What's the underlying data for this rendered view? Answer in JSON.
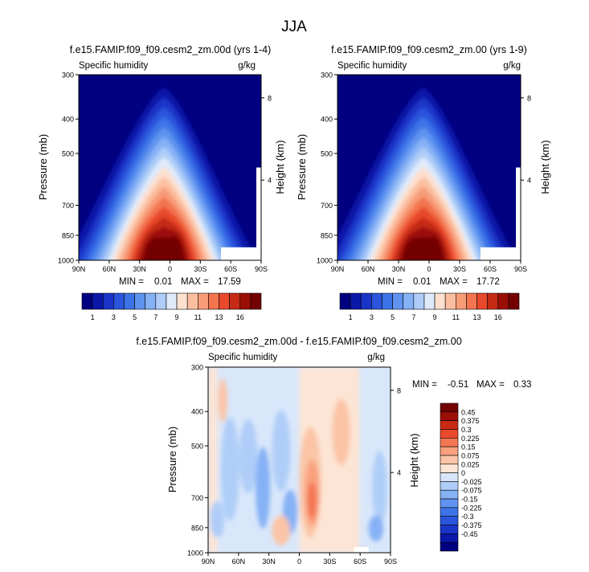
{
  "figure": {
    "title": "JJA"
  },
  "colors": {
    "abs_scale": [
      "#000080",
      "#0a17a8",
      "#1b34c8",
      "#2a55dc",
      "#3c74e8",
      "#5f93ef",
      "#85b1f5",
      "#afcdf8",
      "#dfeafb",
      "#fde0cf",
      "#fbbfa0",
      "#f89c78",
      "#f3754f",
      "#e8482b",
      "#c52a14",
      "#9b0f07",
      "#730303"
    ],
    "diff_scale": [
      "#000080",
      "#0a17a8",
      "#1b34c8",
      "#2a55dc",
      "#3c74e8",
      "#5f93ef",
      "#85b1f5",
      "#afcdf8",
      "#d7e6fb",
      "#fde5d5",
      "#fbc4a6",
      "#f9a07e",
      "#f47652",
      "#e9492c",
      "#c92a14",
      "#9b0f07",
      "#730303"
    ]
  },
  "chart_data": [
    {
      "type": "contour",
      "title": "f.e15.FAMIP.f09_f09.cesm2_zm.00d (yrs 1-4)",
      "left_label": "Specific humidity",
      "units": "g/kg",
      "ylabel": "Pressure (mb)",
      "right_label": "Height (km)",
      "x_ticks": [
        "90N",
        "60N",
        "30N",
        "0",
        "30S",
        "60S",
        "90S"
      ],
      "y_ticks": [
        "300",
        "400",
        "500",
        "700",
        "850",
        "1000"
      ],
      "y_tick_values": [
        300,
        400,
        500,
        700,
        850,
        1000
      ],
      "height_ticks": [
        "8",
        "4"
      ],
      "height_tick_values": [
        8,
        4
      ],
      "min_label": "MIN =",
      "min": "0.01",
      "max_label": "MAX =",
      "max": "17.59",
      "colorbar_labels": [
        "1",
        "3",
        "5",
        "7",
        "9",
        "11",
        "13",
        "16"
      ]
    },
    {
      "type": "contour",
      "title": "f.e15.FAMIP.f09_f09.cesm2_zm.00 (yrs 1-9)",
      "left_label": "Specific humidity",
      "units": "g/kg",
      "ylabel": "Pressure (mb)",
      "right_label": "Height (km)",
      "x_ticks": [
        "90N",
        "60N",
        "30N",
        "0",
        "30S",
        "60S",
        "90S"
      ],
      "y_ticks": [
        "300",
        "400",
        "500",
        "700",
        "850",
        "1000"
      ],
      "y_tick_values": [
        300,
        400,
        500,
        700,
        850,
        1000
      ],
      "height_ticks": [
        "8",
        "4"
      ],
      "height_tick_values": [
        8,
        4
      ],
      "min_label": "MIN =",
      "min": "0.01",
      "max_label": "MAX =",
      "max": "17.72",
      "colorbar_labels": [
        "1",
        "3",
        "5",
        "7",
        "9",
        "11",
        "13",
        "16"
      ]
    },
    {
      "type": "contour",
      "title": "f.e15.FAMIP.f09_f09.cesm2_zm.00d - f.e15.FAMIP.f09_f09.cesm2_zm.00",
      "left_label": "Specific humidity",
      "units": "g/kg",
      "ylabel": "Pressure (mb)",
      "right_label": "Height (km)",
      "x_ticks": [
        "90N",
        "60N",
        "30N",
        "0",
        "30S",
        "60S",
        "90S"
      ],
      "y_ticks": [
        "300",
        "400",
        "500",
        "700",
        "850",
        "1000"
      ],
      "y_tick_values": [
        300,
        400,
        500,
        700,
        850,
        1000
      ],
      "height_ticks": [
        "8",
        "4"
      ],
      "height_tick_values": [
        8,
        4
      ],
      "min_label": "MIN =",
      "min": "-0.51",
      "max_label": "MAX =",
      "max": "0.33",
      "colorbar_labels": [
        "0.45",
        "0.375",
        "0.3",
        "0.225",
        "0.15",
        "0.075",
        "0.025",
        "0",
        "-0.025",
        "-0.075",
        "-0.15",
        "-0.225",
        "-0.3",
        "-0.375",
        "-0.45"
      ]
    }
  ]
}
